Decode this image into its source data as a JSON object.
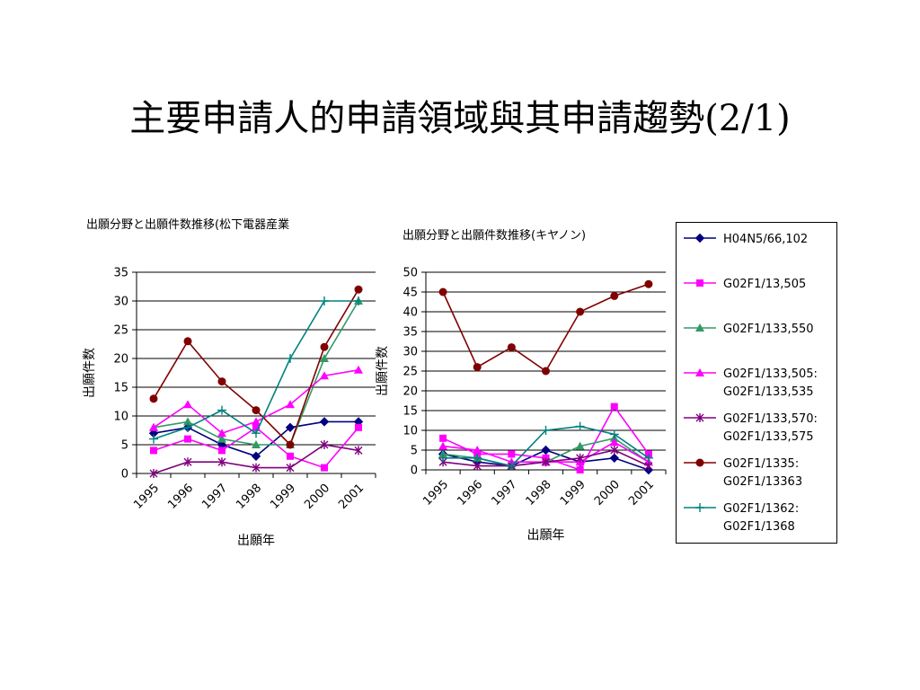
{
  "slide": {
    "title": "主要申請人的申請領域與其申請趨勢(2/1)"
  },
  "legend": [
    {
      "lines": [
        "H04N5/66,102"
      ],
      "color": "#000080",
      "marker": "diamond"
    },
    {
      "lines": [
        "G02F1/13,505"
      ],
      "color": "#ff00ff",
      "marker": "square"
    },
    {
      "lines": [
        "G02F1/133,550"
      ],
      "color": "#339966",
      "marker": "triangle"
    },
    {
      "lines": [
        "G02F1/133,505:",
        "G02F1/133,535"
      ],
      "color": "#ff00ff",
      "marker": "triangle"
    },
    {
      "lines": [
        "G02F1/133,570:",
        "G02F1/133,575"
      ],
      "color": "#800080",
      "marker": "asterisk"
    },
    {
      "lines": [
        "G02F1/1335:",
        "G02F1/13363"
      ],
      "color": "#800000",
      "marker": "circle"
    },
    {
      "lines": [
        "G02F1/1362:",
        "G02F1/1368"
      ],
      "color": "#008080",
      "marker": "plus"
    }
  ],
  "chart_data": [
    {
      "type": "line",
      "title": "出願分野と出願件数推移(松下電器産業",
      "xlabel": "出願年",
      "ylabel": "出願件数",
      "categories": [
        "1995",
        "1996",
        "1997",
        "1998",
        "1999",
        "2000",
        "2001"
      ],
      "ylim": [
        0,
        35
      ],
      "yticks": [
        0,
        5,
        10,
        15,
        20,
        25,
        30,
        35
      ],
      "grid": true,
      "series": [
        {
          "name": "H04N5/66,102",
          "values": [
            7,
            8,
            5,
            3,
            8,
            9,
            9
          ]
        },
        {
          "name": "G02F1/13,505",
          "values": [
            4,
            6,
            4,
            8,
            3,
            1,
            8
          ]
        },
        {
          "name": "G02F1/133,550",
          "values": [
            8,
            9,
            6,
            5,
            5,
            20,
            30
          ]
        },
        {
          "name": "G02F1/133,505:G02F1/133,535",
          "values": [
            8,
            12,
            7,
            9,
            12,
            17,
            18
          ]
        },
        {
          "name": "G02F1/133,570:G02F1/133,575",
          "values": [
            0,
            2,
            2,
            1,
            1,
            5,
            4
          ]
        },
        {
          "name": "G02F1/1335:G02F1/13363",
          "values": [
            13,
            23,
            16,
            11,
            5,
            22,
            32
          ]
        },
        {
          "name": "G02F1/1362:G02F1/1368",
          "values": [
            6,
            8,
            11,
            7,
            20,
            30,
            30
          ]
        }
      ]
    },
    {
      "type": "line",
      "title": "出願分野と出願件数推移(キヤノン)",
      "xlabel": "出願年",
      "ylabel": "出願件数",
      "categories": [
        "1995",
        "1996",
        "1997",
        "1998",
        "1999",
        "2000",
        "2001"
      ],
      "ylim": [
        0,
        50
      ],
      "yticks": [
        0,
        5,
        10,
        15,
        20,
        25,
        30,
        35,
        40,
        45,
        50
      ],
      "grid": true,
      "series": [
        {
          "name": "H04N5/66,102",
          "values": [
            4,
            2,
            1,
            5,
            2,
            3,
            0
          ]
        },
        {
          "name": "G02F1/13,505",
          "values": [
            8,
            4,
            4,
            3,
            0,
            16,
            4
          ]
        },
        {
          "name": "G02F1/133,550",
          "values": [
            4,
            3,
            1,
            2,
            6,
            8,
            2
          ]
        },
        {
          "name": "G02F1/133,505:G02F1/133,535",
          "values": [
            6,
            5,
            2,
            2,
            2,
            7,
            2
          ]
        },
        {
          "name": "G02F1/133,570:G02F1/133,575",
          "values": [
            2,
            1,
            1,
            2,
            3,
            5,
            1
          ]
        },
        {
          "name": "G02F1/1335:G02F1/13363",
          "values": [
            45,
            26,
            31,
            25,
            40,
            44,
            47
          ]
        },
        {
          "name": "G02F1/1362:G02F1/1368",
          "values": [
            3,
            3,
            1,
            10,
            11,
            9,
            3
          ]
        }
      ]
    }
  ]
}
